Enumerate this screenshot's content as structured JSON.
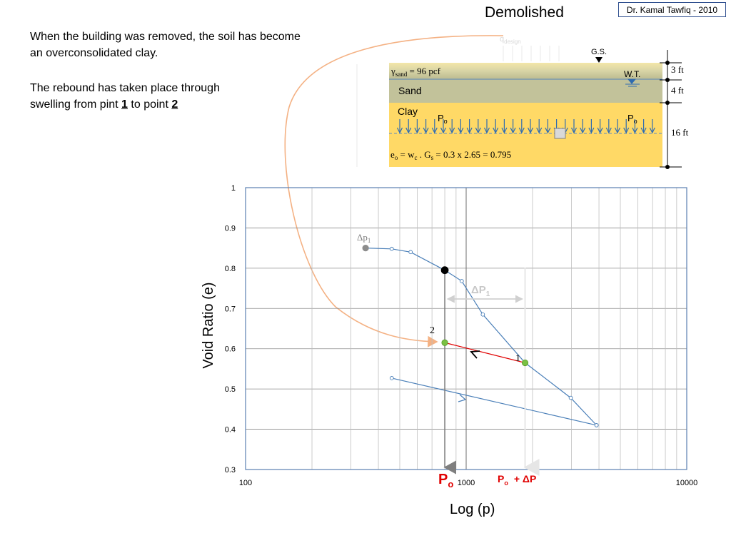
{
  "header": {
    "title": "Demolished",
    "credit": "Dr. Kamal Tawfiq - 2010"
  },
  "notes": {
    "line1": "When the building was removed, the soil has become",
    "line2": "an overconsolidated clay.",
    "line3": "The rebound has taken place  through",
    "line4_pre": "swelling from pint ",
    "line4_n1": "1",
    "line4_mid": " to point ",
    "line4_n2": "2"
  },
  "profile": {
    "q_label": "q",
    "q_sub": "design",
    "gs_label": "G.S.",
    "wt_label": "W.T.",
    "gamma_label": "γ",
    "gamma_sub": "sand",
    "gamma_value": " = 96 pcf",
    "sand_label": "Sand",
    "clay_label": "Clay",
    "po_left": "P",
    "po_right": "P",
    "po_sub": "o",
    "e0_text": "e",
    "e0_sub": "o",
    "e0_eq": " = w",
    "e0_wsub": "c",
    "e0_gs": " . G",
    "e0_gsub": "s",
    "e0_rest": " = 0.3 x 2.65 = 0.795",
    "dim_3ft": "3 ft",
    "dim_4ft": "4 ft",
    "dim_16ft": "16 ft",
    "colors": {
      "sand_top": "#f3e6a8",
      "sand_mid": "#c9c8a0",
      "clay": "#ffd966",
      "arrows": "#2e6bb0"
    }
  },
  "chart_data": {
    "type": "scatter",
    "xlabel": "Log (p)",
    "ylabel": "Void Ratio (e)",
    "x_scale": "log",
    "xlim": [
      100,
      10000
    ],
    "ylim": [
      0.3,
      1.0
    ],
    "x_ticks": [
      "100",
      "1000",
      "10000"
    ],
    "y_ticks": [
      "0.3",
      "0.4",
      "0.5",
      "0.6",
      "0.7",
      "0.8",
      "0.9",
      "1"
    ],
    "grid": true,
    "series": [
      {
        "color": "#4a7fb8",
        "points": [
          [
            350,
            0.85
          ],
          [
            460,
            0.848
          ],
          [
            560,
            0.84
          ],
          [
            800,
            0.795
          ],
          [
            955,
            0.768
          ],
          [
            1190,
            0.685
          ],
          [
            1850,
            0.565
          ],
          [
            2980,
            0.478
          ],
          [
            3900,
            0.41
          ]
        ]
      },
      {
        "color": "#4a7fb8",
        "points": [
          [
            3900,
            0.41
          ],
          [
            460,
            0.527
          ]
        ]
      }
    ],
    "markers": [
      {
        "x": 350,
        "y": 0.85,
        "color": "#8c8c8c"
      },
      {
        "x": 800,
        "y": 0.795,
        "color": "#000000"
      },
      {
        "x": 800,
        "y": 0.615,
        "color": "#7ac143"
      },
      {
        "x": 1850,
        "y": 0.565,
        "color": "#7ac143"
      }
    ],
    "annotations": {
      "dp1_label": "Δp",
      "dp1_sub": "1",
      "dP1_label": "ΔP",
      "dP1_sub": "1",
      "point2": "2",
      "point1": "1",
      "po_axis": "P",
      "po_axis_sub": "o",
      "po_dp_axis": "P",
      "po_dp_axis_sub": "o",
      "po_dp_plus": "+ ΔP"
    },
    "colors": {
      "po_label": "#e00000",
      "rebound": "#e00000",
      "arc": "#f4b183",
      "grid": "#bfbfbf"
    }
  }
}
